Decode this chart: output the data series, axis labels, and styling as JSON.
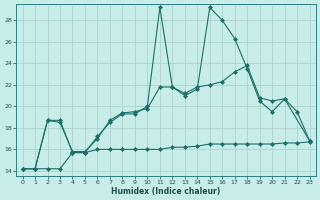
{
  "xlabel": "Humidex (Indice chaleur)",
  "background_color": "#c8ece8",
  "grid_color": "#aed4d0",
  "line_color": "#1a7068",
  "line1_x": [
    0,
    1,
    2,
    3,
    4,
    5,
    6,
    7,
    8,
    9,
    10,
    11,
    12,
    13,
    14,
    15,
    16,
    17,
    18,
    19,
    20,
    21,
    22,
    23
  ],
  "line1_y": [
    14.2,
    14.2,
    18.7,
    18.7,
    15.7,
    15.7,
    17.2,
    18.5,
    19.3,
    19.3,
    20.0,
    29.2,
    21.8,
    21.0,
    21.6,
    29.2,
    28.0,
    26.3,
    23.5,
    20.5,
    19.5,
    20.7,
    19.5,
    16.8
  ],
  "line2_x": [
    0,
    1,
    2,
    3,
    4,
    5,
    6,
    7,
    8,
    9,
    10,
    11,
    12,
    13,
    14,
    15,
    16,
    17,
    18,
    19,
    20,
    21,
    23
  ],
  "line2_y": [
    14.2,
    14.2,
    18.7,
    18.5,
    15.8,
    15.8,
    17.0,
    18.7,
    19.4,
    19.5,
    19.8,
    21.8,
    21.8,
    21.2,
    21.8,
    22.0,
    22.3,
    23.2,
    23.8,
    20.8,
    20.5,
    20.7,
    16.8
  ],
  "line3_x": [
    0,
    1,
    2,
    3,
    4,
    5,
    6,
    7,
    8,
    9,
    10,
    11,
    12,
    13,
    14,
    15,
    16,
    17,
    18,
    19,
    20,
    21,
    22,
    23
  ],
  "line3_y": [
    14.2,
    14.2,
    14.2,
    14.2,
    15.7,
    15.7,
    16.0,
    16.0,
    16.0,
    16.0,
    16.0,
    16.0,
    16.2,
    16.2,
    16.3,
    16.5,
    16.5,
    16.5,
    16.5,
    16.5,
    16.5,
    16.6,
    16.6,
    16.7
  ],
  "ylim": [
    13.5,
    29.5
  ],
  "xlim": [
    -0.5,
    23.5
  ],
  "yticks": [
    14,
    16,
    18,
    20,
    22,
    24,
    26,
    28
  ],
  "xticks": [
    0,
    1,
    2,
    3,
    4,
    5,
    6,
    7,
    8,
    9,
    10,
    11,
    12,
    13,
    14,
    15,
    16,
    17,
    18,
    19,
    20,
    21,
    22,
    23
  ]
}
